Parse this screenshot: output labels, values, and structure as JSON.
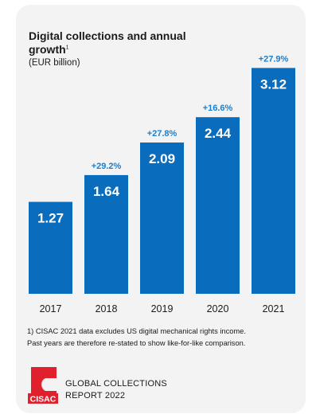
{
  "chart_data": {
    "type": "bar",
    "title": "Digital collections and annual growth",
    "title_superscript": "1",
    "subtitle": "(EUR billion)",
    "categories": [
      "2017",
      "2018",
      "2019",
      "2020",
      "2021"
    ],
    "values": [
      1.27,
      1.64,
      2.09,
      2.44,
      3.12
    ],
    "value_labels": [
      "1.27",
      "1.64",
      "2.09",
      "2.44",
      "3.12"
    ],
    "growth_labels": [
      "",
      "+29.2%",
      "+27.8%",
      "+16.6%",
      "+27.9%"
    ],
    "ylim": [
      0,
      3.3
    ],
    "grid": false,
    "colors": {
      "bar": "#0a6cbc",
      "growth_text": "#1a7fcf",
      "value_text": "#ffffff",
      "card_background": "#f3f3f3",
      "logo_red": "#e0202c"
    }
  },
  "footnote": {
    "line1": "1) CISAC 2021 data excludes US digital mechanical rights income.",
    "line2": "Past years are therefore re-stated to show like-for-like comparison."
  },
  "logo": {
    "text": "CISAC"
  },
  "report": {
    "line1": "GLOBAL COLLECTIONS",
    "line2": "REPORT 2022"
  }
}
